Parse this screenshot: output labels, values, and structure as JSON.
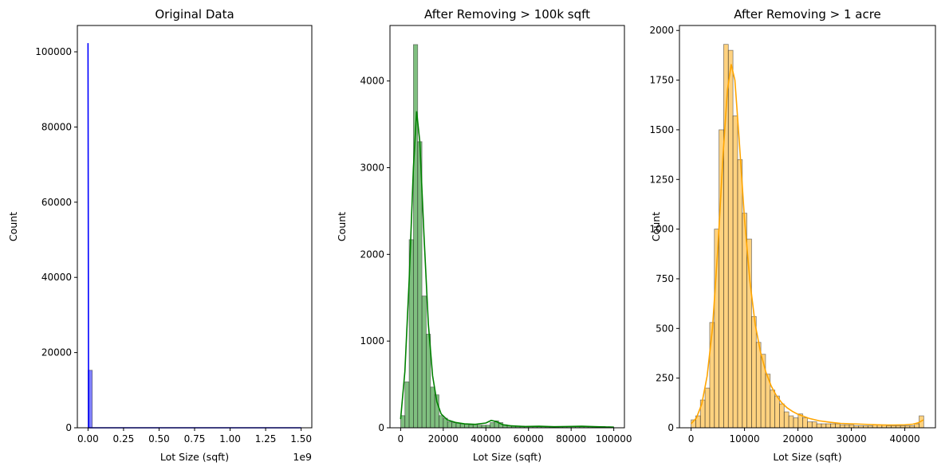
{
  "chart_data": [
    {
      "type": "histogram",
      "title": "Original Data",
      "xlabel": "Lot Size (sqft)",
      "ylabel": "Count",
      "x_offset_text": "1e9",
      "xlim": [
        -0.075,
        1.575
      ],
      "ylim": [
        0,
        107000
      ],
      "xticks": [
        0,
        0.25,
        0.5,
        0.75,
        1.0,
        1.25,
        1.5
      ],
      "xtick_labels": [
        "0.00",
        "0.25",
        "0.50",
        "0.75",
        "1.00",
        "1.25",
        "1.50"
      ],
      "yticks": [
        0,
        20000,
        40000,
        60000,
        80000,
        100000
      ],
      "ytick_labels": [
        "0",
        "20000",
        "40000",
        "60000",
        "80000",
        "100000"
      ],
      "bar_color": "#0000ff",
      "kde_color": "#0000ff",
      "bins": [
        {
          "x0": 0.0,
          "x1": 0.03,
          "count": 15300
        }
      ],
      "kde": [
        {
          "x": 0.0,
          "y": 102300
        },
        {
          "x": 0.004,
          "y": 0
        },
        {
          "x": 1.5,
          "y": 0
        }
      ]
    },
    {
      "type": "histogram",
      "title": "After Removing > 100k sqft",
      "xlabel": "Lot Size (sqft)",
      "ylabel": "Count",
      "xlim": [
        -5000,
        105000
      ],
      "ylim": [
        0,
        4640
      ],
      "xticks": [
        0,
        20000,
        40000,
        60000,
        80000,
        100000
      ],
      "xtick_labels": [
        "0",
        "20000",
        "40000",
        "60000",
        "80000",
        "100000"
      ],
      "yticks": [
        0,
        1000,
        2000,
        3000,
        4000
      ],
      "ytick_labels": [
        "0",
        "1000",
        "2000",
        "3000",
        "4000"
      ],
      "bar_color": "#008000",
      "kde_color": "#008000",
      "bin_start": 0,
      "bin_width": 2000,
      "counts": [
        140,
        530,
        2170,
        4420,
        3300,
        1520,
        1080,
        470,
        380,
        140,
        110,
        70,
        60,
        55,
        45,
        40,
        35,
        40,
        30,
        30,
        30,
        60,
        80,
        60,
        35,
        25,
        20,
        20,
        20,
        15,
        15,
        15,
        15,
        15,
        15,
        15,
        15,
        15,
        15,
        15,
        15,
        15,
        15,
        15,
        15,
        15,
        15,
        15,
        10,
        10
      ],
      "kde": [
        {
          "x": 0,
          "y": 100
        },
        {
          "x": 2000,
          "y": 650
        },
        {
          "x": 4000,
          "y": 1700
        },
        {
          "x": 6000,
          "y": 3000
        },
        {
          "x": 7500,
          "y": 3650
        },
        {
          "x": 9000,
          "y": 3300
        },
        {
          "x": 11000,
          "y": 2200
        },
        {
          "x": 13000,
          "y": 1200
        },
        {
          "x": 15000,
          "y": 600
        },
        {
          "x": 17000,
          "y": 300
        },
        {
          "x": 19000,
          "y": 160
        },
        {
          "x": 22000,
          "y": 90
        },
        {
          "x": 26000,
          "y": 60
        },
        {
          "x": 30000,
          "y": 45
        },
        {
          "x": 35000,
          "y": 40
        },
        {
          "x": 40000,
          "y": 55
        },
        {
          "x": 42500,
          "y": 85
        },
        {
          "x": 45000,
          "y": 70
        },
        {
          "x": 48000,
          "y": 35
        },
        {
          "x": 52000,
          "y": 22
        },
        {
          "x": 58000,
          "y": 15
        },
        {
          "x": 65000,
          "y": 18
        },
        {
          "x": 72000,
          "y": 12
        },
        {
          "x": 78000,
          "y": 15
        },
        {
          "x": 85000,
          "y": 18
        },
        {
          "x": 92000,
          "y": 12
        },
        {
          "x": 100000,
          "y": 8
        }
      ]
    },
    {
      "type": "histogram",
      "title": "After Removing > 1 acre",
      "xlabel": "Lot Size (sqft)",
      "ylabel": "Count",
      "xlim": [
        -2180,
        45740
      ],
      "ylim": [
        0,
        2025
      ],
      "xticks": [
        0,
        10000,
        20000,
        30000,
        40000
      ],
      "xtick_labels": [
        "0",
        "10000",
        "20000",
        "30000",
        "40000"
      ],
      "yticks": [
        0,
        250,
        500,
        750,
        1000,
        1250,
        1500,
        1750,
        2000
      ],
      "ytick_labels": [
        "0",
        "250",
        "500",
        "750",
        "1000",
        "1250",
        "1500",
        "1750",
        "2000"
      ],
      "bar_color": "#ffa500",
      "kde_color": "#ffa500",
      "bin_start": 0,
      "bin_width": 871,
      "counts": [
        40,
        60,
        140,
        200,
        530,
        1000,
        1500,
        1930,
        1900,
        1570,
        1350,
        1080,
        950,
        560,
        430,
        370,
        270,
        190,
        160,
        120,
        80,
        60,
        50,
        70,
        50,
        30,
        30,
        20,
        20,
        20,
        20,
        20,
        15,
        15,
        15,
        10,
        10,
        10,
        10,
        15,
        15,
        15,
        10,
        10,
        10,
        10,
        10,
        10,
        20,
        60
      ],
      "kde": [
        {
          "x": 0,
          "y": 20
        },
        {
          "x": 1000,
          "y": 50
        },
        {
          "x": 2000,
          "y": 120
        },
        {
          "x": 3000,
          "y": 260
        },
        {
          "x": 4000,
          "y": 500
        },
        {
          "x": 5000,
          "y": 900
        },
        {
          "x": 6000,
          "y": 1380
        },
        {
          "x": 6800,
          "y": 1700
        },
        {
          "x": 7500,
          "y": 1830
        },
        {
          "x": 8200,
          "y": 1750
        },
        {
          "x": 9000,
          "y": 1450
        },
        {
          "x": 10000,
          "y": 1050
        },
        {
          "x": 11000,
          "y": 740
        },
        {
          "x": 12000,
          "y": 520
        },
        {
          "x": 13000,
          "y": 380
        },
        {
          "x": 14000,
          "y": 280
        },
        {
          "x": 15000,
          "y": 210
        },
        {
          "x": 16000,
          "y": 160
        },
        {
          "x": 17000,
          "y": 125
        },
        {
          "x": 18000,
          "y": 100
        },
        {
          "x": 19000,
          "y": 82
        },
        {
          "x": 20000,
          "y": 68
        },
        {
          "x": 22000,
          "y": 48
        },
        {
          "x": 24000,
          "y": 35
        },
        {
          "x": 26000,
          "y": 28
        },
        {
          "x": 28000,
          "y": 22
        },
        {
          "x": 30000,
          "y": 20
        },
        {
          "x": 32000,
          "y": 18
        },
        {
          "x": 34000,
          "y": 16
        },
        {
          "x": 36000,
          "y": 14
        },
        {
          "x": 38000,
          "y": 14
        },
        {
          "x": 40000,
          "y": 15
        },
        {
          "x": 41500,
          "y": 18
        },
        {
          "x": 42500,
          "y": 25
        },
        {
          "x": 43500,
          "y": 40
        }
      ]
    }
  ]
}
